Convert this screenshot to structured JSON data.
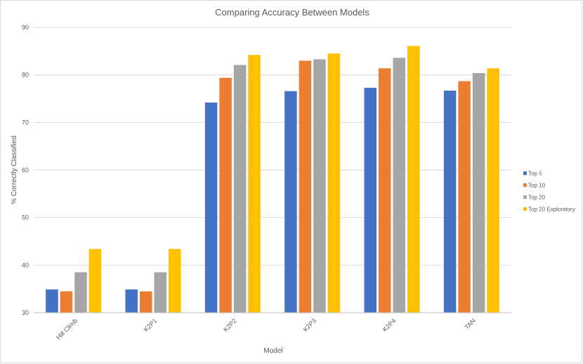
{
  "chart_data": {
    "type": "bar",
    "title": "Comparing  Accuracy Between Models",
    "xlabel": "Model",
    "ylabel": "% Correctly Classified",
    "ylim": [
      30,
      90
    ],
    "yticks": [
      30,
      40,
      50,
      60,
      70,
      80,
      90
    ],
    "grid": true,
    "legend_position": "right",
    "categories": [
      "Hill Climb",
      "K2P1",
      "K2P2",
      "K2P3",
      "K2P4",
      "TAN"
    ],
    "series": [
      {
        "name": "Top 5",
        "color": "#4472c4",
        "values": [
          34.9,
          34.9,
          74.2,
          76.6,
          77.3,
          76.7
        ]
      },
      {
        "name": "Top 10",
        "color": "#ed7d31",
        "values": [
          34.5,
          34.5,
          79.4,
          83.0,
          81.4,
          78.7
        ]
      },
      {
        "name": "Top 20",
        "color": "#a5a5a5",
        "values": [
          38.5,
          38.5,
          82.1,
          83.3,
          83.6,
          80.4
        ]
      },
      {
        "name": "Top 20 Exploratory",
        "color": "#ffc000",
        "values": [
          43.4,
          43.4,
          84.2,
          84.5,
          86.1,
          81.4
        ]
      }
    ]
  }
}
